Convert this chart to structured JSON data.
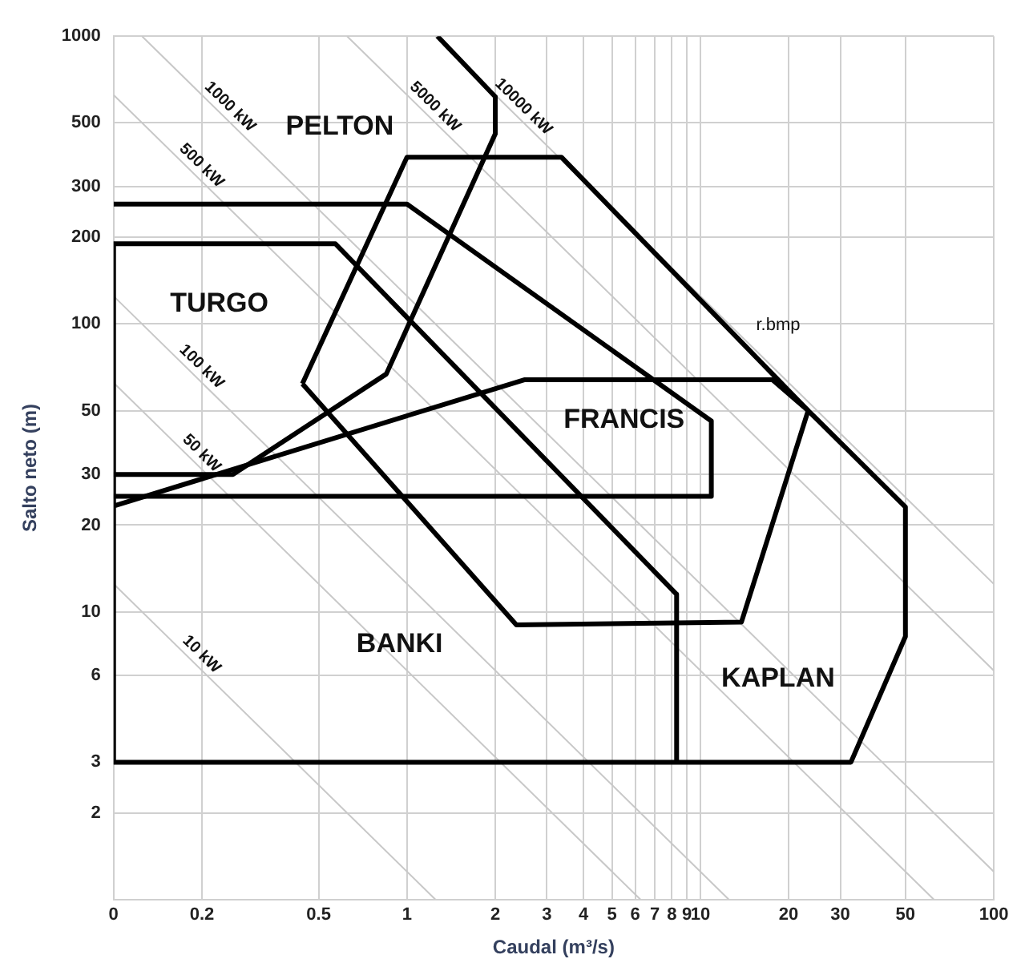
{
  "chart_data": {
    "type": "line",
    "xlabel": "Caudal (m³/s)",
    "ylabel": "Salto neto (m)",
    "log": "xy",
    "grid": true,
    "legend": false,
    "marker": "none",
    "line_style": "solid",
    "xlim": [
      0.1,
      100
    ],
    "ylim": [
      1,
      1000
    ],
    "xticks": [
      {
        "value": 0.1,
        "label": "0"
      },
      0.2,
      0.5,
      1,
      2,
      3,
      4,
      5,
      6,
      7,
      8,
      9,
      10,
      20,
      30,
      50,
      100
    ],
    "yticks": [
      2,
      3,
      6,
      10,
      20,
      30,
      50,
      100,
      200,
      300,
      500,
      1000
    ],
    "series": [
      {
        "name": "10 kW",
        "color": "#c8c8c8",
        "x": [
          0.1,
          1.25
        ],
        "values": [
          12.5,
          1
        ]
      },
      {
        "name": "50 kW",
        "color": "#c8c8c8",
        "x": [
          0.1,
          6.25
        ],
        "values": [
          62.5,
          1
        ]
      },
      {
        "name": "100 kW",
        "color": "#c8c8c8",
        "x": [
          0.1,
          12.5
        ],
        "values": [
          125,
          1
        ]
      },
      {
        "name": "500 kW",
        "color": "#c8c8c8",
        "x": [
          0.1,
          62.5
        ],
        "values": [
          625,
          1
        ]
      },
      {
        "name": "1000 kW",
        "color": "#c8c8c8",
        "x": [
          0.125,
          100
        ],
        "values": [
          1000,
          1.25
        ]
      },
      {
        "name": "5000 kW",
        "color": "#c8c8c8",
        "x": [
          0.625,
          100
        ],
        "values": [
          1000,
          6.25
        ]
      },
      {
        "name": "10000 kW",
        "color": "#c8c8c8",
        "x": [
          1.25,
          100
        ],
        "values": [
          1000,
          12.5
        ]
      },
      {
        "color": "#000000",
        "x": [
          1.27,
          2.0,
          2.0,
          0.85,
          0.255,
          0.1
        ],
        "values": [
          1000,
          616,
          458,
          67,
          30,
          30
        ]
      },
      {
        "color": "#000000",
        "x": [
          0.44,
          1,
          3.36,
          23.3
        ],
        "values": [
          62,
          380,
          380,
          50
        ]
      },
      {
        "color": "#000000",
        "x": [
          0.44,
          2.36,
          13.8,
          23.3
        ],
        "values": [
          62,
          9,
          9.2,
          50
        ]
      },
      {
        "color": "#000000",
        "x": [
          0.1,
          1,
          10.9,
          10.9,
          0.1
        ],
        "values": [
          261,
          261,
          46,
          25.2,
          25.2
        ]
      },
      {
        "color": "#000000",
        "x": [
          0.1,
          2.51,
          17.6,
          23.3,
          50,
          50,
          32.6,
          0.1,
          0.1,
          0.57,
          8.3,
          8.3
        ],
        "values": [
          23.3,
          64,
          64,
          50,
          23.1,
          8.2,
          3,
          3,
          190,
          190,
          11.5,
          3
        ]
      }
    ],
    "annotations": [
      "PELTON",
      "TURGO",
      "FRANCIS",
      "BANKI",
      "KAPLAN",
      "r.bmp"
    ]
  }
}
